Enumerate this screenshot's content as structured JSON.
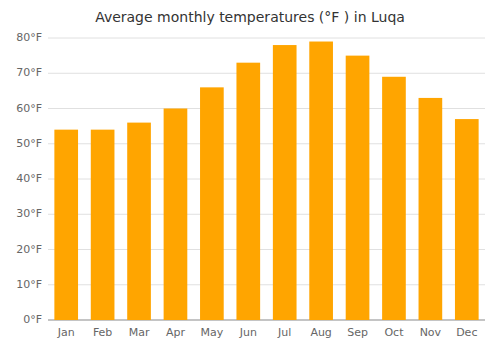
{
  "chart_data": {
    "type": "bar",
    "title": "Average monthly temperatures (°F ) in Luqa",
    "categories": [
      "Jan",
      "Feb",
      "Mar",
      "Apr",
      "May",
      "Jun",
      "Jul",
      "Aug",
      "Sep",
      "Oct",
      "Nov",
      "Dec"
    ],
    "values": [
      54,
      54,
      56,
      60,
      66,
      73,
      78,
      79,
      75,
      69,
      63,
      57
    ],
    "color": "#FFA500",
    "ylim": [
      0,
      80
    ],
    "yticks": [
      {
        "value": 0,
        "label": "0°F"
      },
      {
        "value": 10,
        "label": "10°F"
      },
      {
        "value": 20,
        "label": "20°F"
      },
      {
        "value": 30,
        "label": "30°F"
      },
      {
        "value": 40,
        "label": "40°F"
      },
      {
        "value": 50,
        "label": "50°F"
      },
      {
        "value": 60,
        "label": "60°F"
      },
      {
        "value": 70,
        "label": "70°F"
      },
      {
        "value": 80,
        "label": "80°F"
      }
    ],
    "grid": true
  }
}
